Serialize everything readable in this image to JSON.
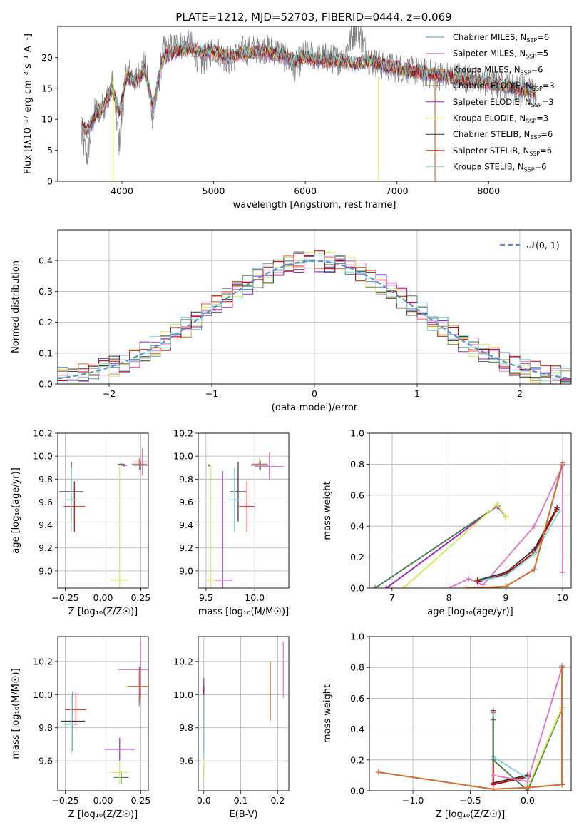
{
  "title": "PLATE=1212, MJD=52703, FIBERID=0444, z=0.069",
  "colors": {
    "chabrier_miles": "#5b8fd0",
    "salpeter_miles": "#e377c2",
    "kroupa_miles": "#e06c26",
    "chabrier_elodie": "#4a7a4a",
    "salpeter_elodie": "#9b27c0",
    "kroupa_elodie": "#d4e85a",
    "chabrier_stelib": "#333333",
    "salpeter_stelib": "#c40000",
    "kroupa_stelib": "#7fd8d8",
    "observed": "#808080",
    "normal_curve": "#5b8fd0"
  },
  "legend_spectrum": [
    {
      "pre": "Chabrier MILES, N",
      "sub": "SSP",
      "post": "=6",
      "key": "chabrier_miles"
    },
    {
      "pre": "Salpeter MILES, N",
      "sub": "SSP",
      "post": "=5",
      "key": "salpeter_miles"
    },
    {
      "pre": "Kroupa MILES, N",
      "sub": "SSP",
      "post": "=6",
      "key": "kroupa_miles"
    },
    {
      "pre": "Chabrier ELODIE, N",
      "sub": "SSP",
      "post": "=3",
      "key": "chabrier_elodie"
    },
    {
      "pre": "Salpeter ELODIE, N",
      "sub": "SSP",
      "post": "=3",
      "key": "salpeter_elodie"
    },
    {
      "pre": "Kroupa ELODIE, N",
      "sub": "SSP",
      "post": "=3",
      "key": "kroupa_elodie"
    },
    {
      "pre": "Chabrier STELIB, N",
      "sub": "SSP",
      "post": "=6",
      "key": "chabrier_stelib"
    },
    {
      "pre": "Salpeter STELIB, N",
      "sub": "SSP",
      "post": "=6",
      "key": "salpeter_stelib"
    },
    {
      "pre": "Kroupa STELIB, N",
      "sub": "SSP",
      "post": "=6",
      "key": "kroupa_stelib"
    }
  ],
  "legend_hist": "𝒩(0, 1)",
  "chart_data": [
    {
      "id": "spectrum",
      "type": "line",
      "xlabel": "wavelength [Angstrom, rest frame]",
      "ylabel": "Flux [fλ10⁻¹⁷ erg cm⁻² s⁻¹ A⁻¹]",
      "xlim": [
        3300,
        8900
      ],
      "ylim": [
        0,
        25
      ],
      "xticks": [
        4000,
        5000,
        6000,
        7000,
        8000
      ],
      "yticks": [
        0,
        5,
        10,
        15,
        20
      ],
      "x": [
        3560,
        3620,
        3700,
        3800,
        3900,
        3970,
        4050,
        4150,
        4250,
        4340,
        4450,
        4600,
        4750,
        4861,
        5000,
        5175,
        5300,
        5500,
        5700,
        5890,
        6000,
        6200,
        6400,
        6563,
        6700,
        6900,
        7100,
        7300,
        7500,
        7700,
        7900,
        8100,
        8300,
        8500
      ],
      "model_flux": [
        9,
        8,
        10.5,
        12,
        15,
        11,
        17,
        16,
        18,
        12,
        20,
        21,
        21.5,
        21,
        21,
        20,
        20.5,
        21,
        20.5,
        19.5,
        20,
        19.5,
        19.5,
        19,
        19.5,
        18.5,
        18,
        17.5,
        17,
        16.5,
        16,
        15.5,
        15,
        14.5
      ],
      "observed_flux": [
        7,
        4,
        11,
        12,
        16,
        6,
        18,
        16.5,
        19,
        10,
        21,
        22,
        22,
        19,
        21.5,
        19.5,
        21,
        21.5,
        21,
        18.5,
        20.5,
        20,
        19.5,
        25,
        19.5,
        18.5,
        18,
        17.5,
        17,
        17,
        16,
        15.5,
        15,
        14.5
      ]
    },
    {
      "id": "residuals",
      "type": "histogram",
      "xlabel": "(data-model)/error",
      "ylabel": "Normed distribution",
      "xlim": [
        -2.5,
        2.5
      ],
      "ylim": [
        0,
        0.5
      ],
      "xticks": [
        -2,
        -1,
        0,
        1,
        2
      ],
      "yticks": [
        0.0,
        0.1,
        0.2,
        0.3,
        0.4
      ],
      "bin_width": 0.1,
      "curve": "N(0,1)"
    },
    {
      "id": "age_vs_Z",
      "type": "scatter",
      "xlabel": "Z [log₁₀(Z/Z☉)]",
      "ylabel": "age  [log₁₀(age/yr)]",
      "xlim": [
        -0.3,
        0.3
      ],
      "ylim": [
        8.85,
        10.2
      ],
      "xticks": [
        -0.25,
        0.0,
        0.25
      ],
      "yticks": [
        9.0,
        9.2,
        9.4,
        9.6,
        9.8,
        10.0,
        10.2
      ],
      "points": [
        {
          "key": "chabrier_miles",
          "x": 0.25,
          "y": 9.92,
          "xerr": 0.05,
          "yerr": 0.04
        },
        {
          "key": "salpeter_miles",
          "x": 0.26,
          "y": 9.95,
          "xerr": 0.05,
          "yerr": 0.12
        },
        {
          "key": "kroupa_miles",
          "x": 0.24,
          "y": 9.93,
          "xerr": 0.05,
          "yerr": 0.05
        },
        {
          "key": "chabrier_elodie",
          "x": 0.12,
          "y": 9.93,
          "xerr": 0.02,
          "yerr": 0.01
        },
        {
          "key": "salpeter_elodie",
          "x": 0.14,
          "y": 9.92,
          "xerr": 0.02,
          "yerr": 0.01
        },
        {
          "key": "kroupa_elodie",
          "x": 0.11,
          "y": 8.92,
          "xerr": 0.06,
          "yerr": 1.0
        },
        {
          "key": "chabrier_stelib",
          "x": -0.21,
          "y": 9.69,
          "xerr": 0.08,
          "yerr": 0.26
        },
        {
          "key": "salpeter_stelib",
          "x": -0.19,
          "y": 9.56,
          "xerr": 0.07,
          "yerr": 0.22
        },
        {
          "key": "kroupa_stelib",
          "x": -0.21,
          "y": 9.62,
          "xerr": 0.04,
          "yerr": 0.28
        }
      ]
    },
    {
      "id": "age_vs_mass",
      "type": "scatter",
      "xlabel": "mass [log₁₀(M/M☉)]",
      "ylabel": "",
      "xlim": [
        9.42,
        10.35
      ],
      "ylim": [
        8.85,
        10.2
      ],
      "xticks": [
        9.5,
        10.0
      ],
      "yticks": [
        9.0,
        9.2,
        9.4,
        9.6,
        9.8,
        10.0,
        10.2
      ],
      "points": [
        {
          "key": "chabrier_miles",
          "x": 10.06,
          "y": 9.92,
          "xerr": 0.1,
          "yerr": 0.04
        },
        {
          "key": "salpeter_miles",
          "x": 10.15,
          "y": 9.91,
          "xerr": 0.15,
          "yerr": 0.12
        },
        {
          "key": "kroupa_miles",
          "x": 10.05,
          "y": 9.93,
          "xerr": 0.08,
          "yerr": 0.05
        },
        {
          "key": "chabrier_elodie",
          "x": 9.53,
          "y": 9.92,
          "xerr": 0.01,
          "yerr": 0.01
        },
        {
          "key": "salpeter_elodie",
          "x": 9.67,
          "y": 8.92,
          "xerr": 0.1,
          "yerr": 0.95
        },
        {
          "key": "kroupa_elodie",
          "x": 9.55,
          "y": 8.92,
          "xerr": 0.05,
          "yerr": 1.0
        },
        {
          "key": "chabrier_stelib",
          "x": 9.83,
          "y": 9.69,
          "xerr": 0.08,
          "yerr": 0.26
        },
        {
          "key": "salpeter_stelib",
          "x": 9.92,
          "y": 9.56,
          "xerr": 0.08,
          "yerr": 0.22
        },
        {
          "key": "kroupa_stelib",
          "x": 9.79,
          "y": 9.62,
          "xerr": 0.06,
          "yerr": 0.28
        }
      ]
    },
    {
      "id": "massweight_vs_age",
      "type": "line",
      "xlabel": "age  [log₁₀(age/yr)]",
      "ylabel": "mass weight",
      "xlim": [
        6.6,
        10.15
      ],
      "ylim": [
        0,
        1.0
      ],
      "xticks": [
        7,
        8,
        9,
        10
      ],
      "yticks": [
        0.0,
        0.2,
        0.4,
        0.6,
        0.8,
        1.0
      ],
      "series": [
        {
          "key": "chabrier_elodie",
          "x": [
            6.7,
            8.85,
            9.0
          ],
          "y": [
            0.0,
            0.53,
            0.46
          ]
        },
        {
          "key": "salpeter_elodie",
          "x": [
            6.9,
            8.85,
            9.0
          ],
          "y": [
            0.0,
            0.53,
            0.46
          ]
        },
        {
          "key": "kroupa_elodie",
          "x": [
            7.2,
            8.85,
            9.0
          ],
          "y": [
            0.0,
            0.54,
            0.46
          ]
        },
        {
          "key": "salpeter_miles",
          "x": [
            8.0,
            8.35,
            8.6,
            9.5,
            10.0,
            10.0
          ],
          "y": [
            0.0,
            0.06,
            0.02,
            0.4,
            0.79,
            0.1
          ]
        },
        {
          "key": "chabrier_stelib",
          "x": [
            8.5,
            9.0,
            9.5,
            9.9
          ],
          "y": [
            0.05,
            0.1,
            0.25,
            0.52
          ]
        },
        {
          "key": "salpeter_stelib",
          "x": [
            8.5,
            9.0,
            9.5,
            9.9
          ],
          "y": [
            0.04,
            0.09,
            0.23,
            0.51
          ]
        },
        {
          "key": "kroupa_stelib",
          "x": [
            8.6,
            9.0,
            9.5,
            9.95
          ],
          "y": [
            0.05,
            0.08,
            0.22,
            0.5
          ]
        },
        {
          "key": "chabrier_miles",
          "x": [
            8.6,
            9.0,
            9.5,
            10.0
          ],
          "y": [
            0.0,
            0.01,
            0.12,
            0.81
          ]
        },
        {
          "key": "kroupa_miles",
          "x": [
            8.3,
            9.0,
            9.5,
            10.0
          ],
          "y": [
            0.0,
            0.01,
            0.12,
            0.8
          ]
        }
      ]
    },
    {
      "id": "mass_vs_Z",
      "type": "scatter",
      "xlabel": "Z [log₁₀(Z/Z☉)]",
      "ylabel": "mass [log₁₀(M/M☉)]",
      "xlim": [
        -0.3,
        0.3
      ],
      "ylim": [
        9.42,
        10.35
      ],
      "xticks": [
        -0.25,
        0.0,
        0.25
      ],
      "yticks": [
        9.6,
        9.8,
        10.0,
        10.2
      ],
      "points": [
        {
          "key": "chabrier_miles",
          "x": 0.24,
          "y": 10.05,
          "xerr": 0.05,
          "yerr": 0.12
        },
        {
          "key": "salpeter_miles",
          "x": 0.25,
          "y": 10.15,
          "xerr": 0.15,
          "yerr": 0.17
        },
        {
          "key": "kroupa_miles",
          "x": 0.24,
          "y": 10.05,
          "xerr": 0.08,
          "yerr": 0.1
        },
        {
          "key": "chabrier_elodie",
          "x": 0.12,
          "y": 9.5,
          "xerr": 0.05,
          "yerr": 0.04
        },
        {
          "key": "salpeter_elodie",
          "x": 0.11,
          "y": 9.67,
          "xerr": 0.1,
          "yerr": 0.07
        },
        {
          "key": "kroupa_elodie",
          "x": 0.11,
          "y": 9.53,
          "xerr": 0.06,
          "yerr": 0.07
        },
        {
          "key": "chabrier_stelib",
          "x": -0.2,
          "y": 9.84,
          "xerr": 0.08,
          "yerr": 0.18
        },
        {
          "key": "salpeter_stelib",
          "x": -0.18,
          "y": 9.91,
          "xerr": 0.07,
          "yerr": 0.1
        },
        {
          "key": "kroupa_stelib",
          "x": -0.21,
          "y": 9.82,
          "xerr": 0.05,
          "yerr": 0.18
        }
      ]
    },
    {
      "id": "mass_vs_ebv",
      "type": "scatter",
      "xlabel": "E(B-V)",
      "ylabel": "",
      "xlim": [
        -0.015,
        0.23
      ],
      "ylim": [
        9.42,
        10.35
      ],
      "xticks": [
        0.0,
        0.1,
        0.2
      ],
      "yticks": [
        9.6,
        9.8,
        10.0,
        10.2
      ],
      "points": [
        {
          "key": "salpeter_miles",
          "x": 0.215,
          "y": 10.15,
          "xerr": 0,
          "yerr": 0.17
        },
        {
          "key": "kroupa_miles",
          "x": 0.18,
          "y": 10.02,
          "xerr": 0,
          "yerr": 0.18
        },
        {
          "key": "salpeter_elodie",
          "x": 0.0,
          "y": 10.0,
          "xerr": 0,
          "yerr": 0.1
        },
        {
          "key": "salpeter_stelib",
          "x": 0.0,
          "y": 9.95,
          "xerr": 0,
          "yerr": 0.1
        },
        {
          "key": "chabrier_elodie",
          "x": 0.0,
          "y": 9.8,
          "xerr": 0,
          "yerr": 0.15
        },
        {
          "key": "kroupa_stelib",
          "x": 0.0,
          "y": 9.75,
          "xerr": 0,
          "yerr": 0.25
        },
        {
          "key": "kroupa_elodie",
          "x": 0.0,
          "y": 9.55,
          "xerr": 0,
          "yerr": 0.07
        }
      ]
    },
    {
      "id": "massweight_vs_Z",
      "type": "line",
      "xlabel": "Z [log₁₀(Z/Z☉)]",
      "ylabel": "mass weight",
      "xlim": [
        -1.38,
        0.38
      ],
      "ylim": [
        0,
        1.0
      ],
      "xticks": [
        -1.0,
        -0.5,
        0.0
      ],
      "yticks": [
        0.0,
        0.2,
        0.4,
        0.6,
        0.8,
        1.0
      ],
      "series": [
        {
          "key": "chabrier_stelib",
          "x": [
            -0.3,
            -0.3,
            0.0,
            0.0
          ],
          "y": [
            0.52,
            0.05,
            0.1,
            0.02
          ]
        },
        {
          "key": "salpeter_stelib",
          "x": [
            -0.3,
            -0.3,
            0.0,
            0.0
          ],
          "y": [
            0.51,
            0.04,
            0.09,
            0.02
          ]
        },
        {
          "key": "kroupa_stelib",
          "x": [
            -0.3,
            -0.3,
            0.0,
            0.0
          ],
          "y": [
            0.5,
            0.22,
            0.08,
            0.03
          ]
        },
        {
          "key": "chabrier_elodie",
          "x": [
            -0.3,
            -0.3,
            0.0,
            0.3
          ],
          "y": [
            0.46,
            0.2,
            0.0,
            0.53
          ]
        },
        {
          "key": "kroupa_elodie",
          "x": [
            0.0,
            0.3
          ],
          "y": [
            0.02,
            0.54
          ]
        },
        {
          "key": "salpeter_miles",
          "x": [
            -0.3,
            0.0,
            0.3
          ],
          "y": [
            0.1,
            0.06,
            0.8
          ]
        },
        {
          "key": "chabrier_miles",
          "x": [
            -1.3,
            -0.3,
            0.0,
            0.3,
            0.3
          ],
          "y": [
            0.12,
            0.01,
            0.02,
            0.04,
            0.81
          ]
        },
        {
          "key": "kroupa_miles",
          "x": [
            -1.3,
            -0.3,
            0.0,
            0.3,
            0.3
          ],
          "y": [
            0.12,
            0.01,
            0.02,
            0.04,
            0.8
          ]
        }
      ]
    }
  ]
}
